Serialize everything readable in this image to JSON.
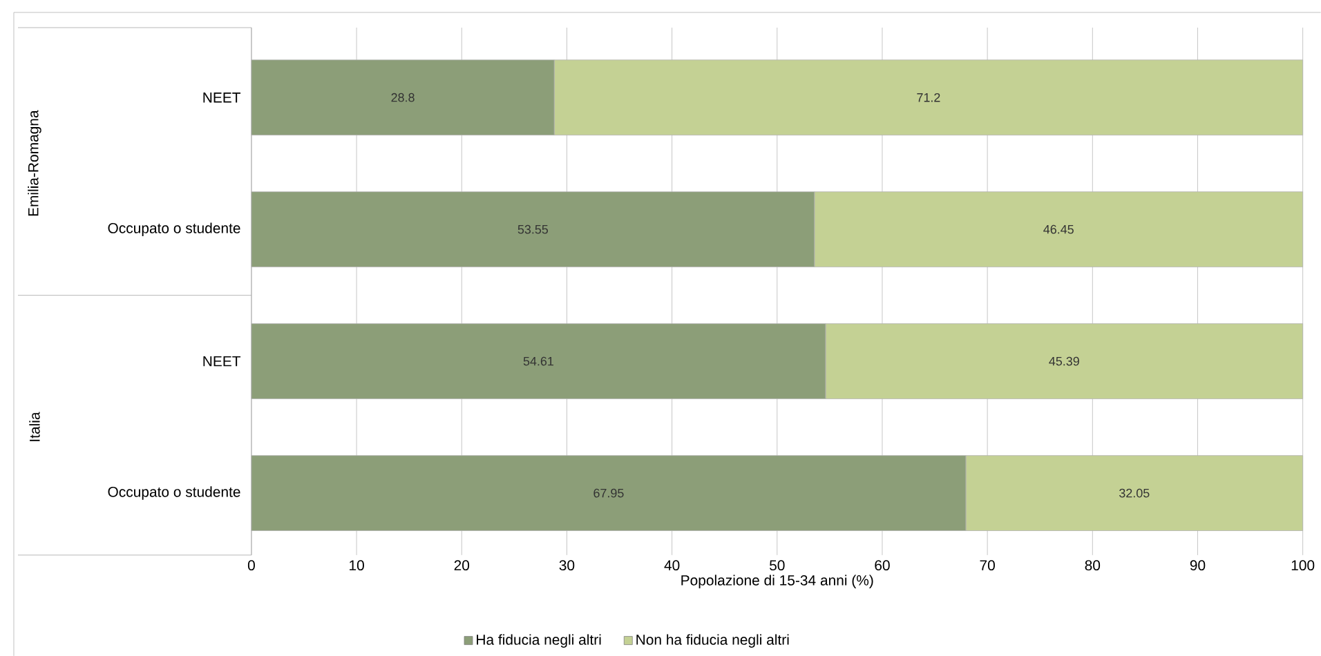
{
  "chart_data": {
    "type": "bar",
    "orientation": "horizontal",
    "stacked": true,
    "xlabel": "Popolazione di 15-34 anni (%)",
    "categories": [
      "NEET",
      "Occupato o studente",
      "NEET",
      "Occupato o studente"
    ],
    "series": [
      {
        "name": "Ha fiducia negli altri",
        "color": "#8c9e78",
        "values": [
          28.8,
          53.55,
          54.61,
          67.95
        ],
        "value_labels": [
          "28.8",
          "53.55",
          "54.61",
          "67.95"
        ]
      },
      {
        "name": "Non ha fiducia negli altri",
        "color": "#c4d194",
        "values": [
          71.2,
          46.45,
          45.39,
          32.05
        ],
        "value_labels": [
          "71.2",
          "46.45",
          "45.39",
          "32.05"
        ]
      }
    ],
    "annotations": [
      "Emilia-Romagna",
      "Italia"
    ],
    "xlim": [
      0,
      100
    ],
    "xticks": [
      0,
      10,
      20,
      30,
      40,
      50,
      60,
      70,
      80,
      90,
      100
    ],
    "grid": "x",
    "legend": "bottom"
  }
}
